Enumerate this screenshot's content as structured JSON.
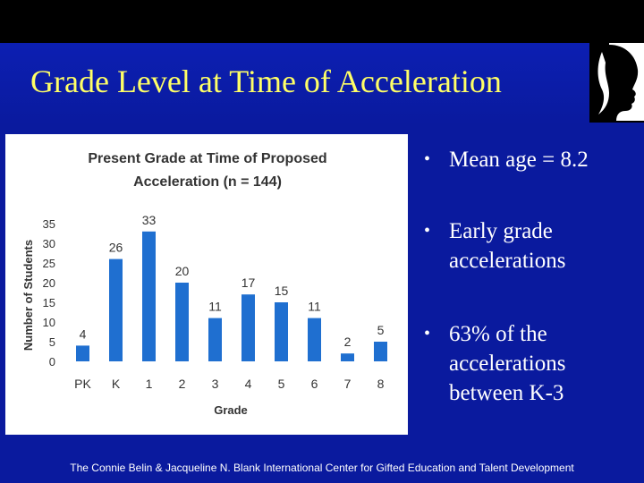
{
  "slide": {
    "title": "Grade Level at Time of Acceleration",
    "footer": "The Connie Belin & Jacqueline N. Blank International Center for Gifted Education and Talent Development",
    "bullets": [
      "Mean age = 8.2",
      "Early grade accelerations",
      "63% of the accelerations between K-3"
    ],
    "colors": {
      "background": "#0a1a9e",
      "title": "#ffff66",
      "bar": "#1f6fd0"
    }
  },
  "chart_data": {
    "type": "bar",
    "title_line1": "Present Grade at Time of Proposed",
    "title_line2": "Acceleration (n = 144)",
    "xlabel": "Grade",
    "ylabel": "Number of Students",
    "categories": [
      "PK",
      "K",
      "1",
      "2",
      "3",
      "4",
      "5",
      "6",
      "7",
      "8"
    ],
    "values": [
      4,
      26,
      33,
      20,
      11,
      17,
      15,
      11,
      2,
      5
    ],
    "ylim": [
      0,
      35
    ],
    "yticks": [
      0,
      5,
      10,
      15,
      20,
      25,
      30,
      35
    ],
    "grid": false,
    "legend": "none"
  }
}
